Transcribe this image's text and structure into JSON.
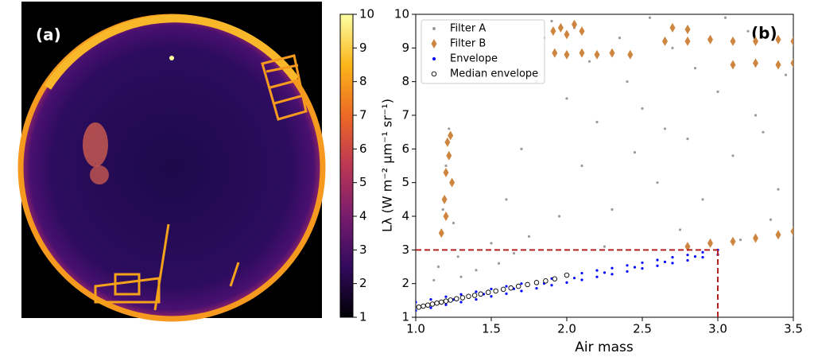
{
  "chart_data": [
    {
      "type": "image",
      "label": "(a)",
      "ylim": [
        1,
        10
      ],
      "yticks": [
        1,
        2,
        3,
        4,
        5,
        6,
        7,
        8,
        9,
        10
      ],
      "colormap": [
        "#000004",
        "#320a5e",
        "#781c6d",
        "#bc3754",
        "#ed6925",
        "#fbb61a",
        "#fcffa4"
      ]
    },
    {
      "type": "scatter",
      "label": "(b)",
      "xlabel": "Air mass",
      "ylabel": "Lλ (W m⁻² µm⁻¹ sr⁻¹)",
      "xlim": [
        1,
        3.5
      ],
      "ylim": [
        1,
        10
      ],
      "xticks": [
        {
          "value": 1,
          "label": "1.0"
        },
        {
          "value": 1.5,
          "label": "1.5"
        },
        {
          "value": 2,
          "label": "2.0"
        },
        {
          "value": 2.5,
          "label": "2.5"
        },
        {
          "value": 3,
          "label": "3.0"
        },
        {
          "value": 3.5,
          "label": "3.5"
        }
      ],
      "yticks": [
        1,
        2,
        3,
        4,
        5,
        6,
        7,
        8,
        9,
        10
      ],
      "reference_lines": {
        "x": 3,
        "y": 3,
        "color": "#b22222"
      },
      "legend": "upper left",
      "series": [
        {
          "name": "Filter A",
          "color": "#9a9a9a",
          "marker": "dot",
          "x": [
            1.15,
            1.18,
            1.2,
            1.22,
            1.25,
            1.28,
            1.12,
            1.3,
            1.5,
            1.6,
            1.7,
            1.8,
            1.85,
            1.9,
            2.0,
            2.1,
            2.2,
            2.3,
            2.4,
            2.5,
            2.6,
            2.7,
            2.8,
            2.9,
            3.0,
            3.1,
            3.2,
            3.3,
            3.4,
            3.45,
            1.4,
            1.65,
            2.25,
            2.75,
            3.15,
            3.35,
            1.95,
            2.45,
            2.05,
            2.55,
            3.05,
            1.75,
            2.15,
            2.65,
            3.25,
            2.35,
            2.85,
            1.55
          ],
          "y": [
            2.5,
            4.2,
            5.5,
            6.6,
            3.8,
            2.8,
            2.1,
            2.2,
            3.2,
            4.5,
            6.0,
            8.0,
            9.3,
            9.8,
            7.5,
            5.5,
            6.8,
            4.2,
            8.0,
            7.2,
            5.0,
            9.0,
            6.3,
            4.5,
            7.7,
            5.8,
            9.5,
            6.5,
            4.8,
            8.2,
            2.4,
            2.9,
            3.1,
            3.6,
            3.3,
            3.9,
            4.0,
            5.9,
            9.6,
            9.9,
            9.9,
            3.4,
            8.6,
            6.6,
            7.0,
            9.3,
            8.4,
            2.6
          ]
        },
        {
          "name": "Filter B",
          "color": "#cd853f",
          "marker": "diamond",
          "x": [
            1.17,
            1.19,
            1.2,
            1.21,
            1.23,
            1.22,
            1.24,
            1.2,
            1.91,
            1.96,
            2.0,
            2.05,
            2.1,
            1.92,
            2.0,
            2.1,
            2.2,
            2.3,
            2.42,
            2.65,
            2.8,
            2.95,
            3.1,
            3.25,
            3.4,
            3.5,
            2.7,
            2.8,
            3.1,
            3.25,
            3.4,
            3.5,
            2.8,
            2.95,
            3.1,
            3.25,
            3.4,
            3.5
          ],
          "y": [
            3.5,
            4.5,
            5.3,
            6.2,
            6.4,
            5.8,
            5.0,
            4.0,
            9.5,
            9.6,
            9.4,
            9.7,
            9.5,
            8.85,
            8.8,
            8.85,
            8.8,
            8.85,
            8.8,
            9.2,
            9.2,
            9.25,
            9.2,
            9.2,
            9.25,
            9.2,
            9.6,
            9.55,
            8.5,
            8.55,
            8.5,
            8.55,
            3.1,
            3.2,
            3.25,
            3.35,
            3.45,
            3.55
          ]
        },
        {
          "name": "Envelope",
          "color": "#0000ff",
          "marker": "dot",
          "x": [
            1.0,
            1.1,
            1.2,
            1.3,
            1.4,
            1.5,
            1.6,
            1.7,
            1.8,
            1.9,
            2.0,
            2.1,
            2.2,
            2.3,
            2.4,
            2.5,
            2.6,
            2.7,
            2.8,
            2.9,
            3.0,
            1.0,
            1.1,
            1.2,
            1.3,
            1.4,
            1.5,
            1.6,
            1.7,
            1.8,
            1.9,
            2.0,
            2.1,
            2.2,
            2.3,
            2.4,
            2.5,
            2.6,
            2.7,
            2.8,
            2.9,
            3.0,
            1.05,
            1.25,
            1.45,
            1.65,
            1.85,
            2.05,
            2.25,
            2.45,
            2.65,
            2.85
          ],
          "y": [
            1.2,
            1.28,
            1.37,
            1.45,
            1.53,
            1.62,
            1.7,
            1.78,
            1.86,
            1.95,
            2.03,
            2.11,
            2.2,
            2.28,
            2.36,
            2.45,
            2.53,
            2.61,
            2.69,
            2.78,
            2.86,
            1.45,
            1.53,
            1.61,
            1.68,
            1.76,
            1.84,
            1.92,
            2.0,
            2.07,
            2.15,
            2.23,
            2.31,
            2.39,
            2.46,
            2.54,
            2.62,
            2.7,
            2.78,
            2.85,
            2.93,
            3.0,
            1.365,
            1.525,
            1.685,
            1.845,
            2.005,
            2.165,
            2.325,
            2.485,
            2.645,
            2.805
          ]
        },
        {
          "name": "Median envelope",
          "color": "#ffffff",
          "marker": "circle",
          "x": [
            1.02,
            1.05,
            1.08,
            1.11,
            1.14,
            1.17,
            1.2,
            1.23,
            1.27,
            1.31,
            1.35,
            1.39,
            1.43,
            1.48,
            1.53,
            1.58,
            1.63,
            1.68,
            1.74,
            1.8,
            1.86,
            1.92,
            2.0
          ],
          "y": [
            1.3,
            1.33,
            1.36,
            1.39,
            1.42,
            1.45,
            1.48,
            1.51,
            1.55,
            1.58,
            1.62,
            1.65,
            1.69,
            1.74,
            1.78,
            1.83,
            1.87,
            1.92,
            1.97,
            2.03,
            2.08,
            2.14,
            2.25
          ]
        }
      ]
    }
  ]
}
